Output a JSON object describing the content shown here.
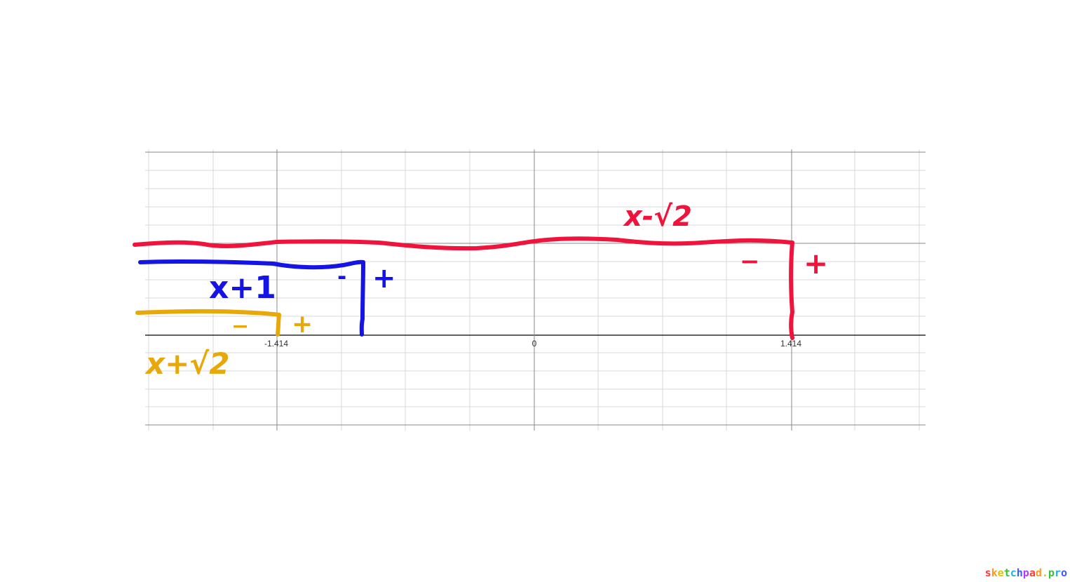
{
  "graph": {
    "x_tick_labels": [
      "-1.414",
      "0",
      "1.414"
    ],
    "grid_color": "#d9d9d9",
    "axis_color": "#000000",
    "major_line_color": "#888888"
  },
  "annotations": {
    "red": {
      "color": "#f0143c",
      "label": "x-√2",
      "left_sign": "−",
      "right_sign": "+"
    },
    "blue": {
      "color": "#1414e6",
      "label": "x+1",
      "left_sign": "-",
      "right_sign": "+"
    },
    "gold": {
      "color": "#e8a80a",
      "label": "x+√2",
      "left_sign": "−",
      "right_sign": "+"
    }
  },
  "watermark": {
    "text": "sketchpad.pro",
    "colors": [
      "#ff3b3b",
      "#ff9a1f",
      "#e0c400",
      "#3bbf3b",
      "#1fb0e0",
      "#3b5bff",
      "#b23bff"
    ]
  }
}
